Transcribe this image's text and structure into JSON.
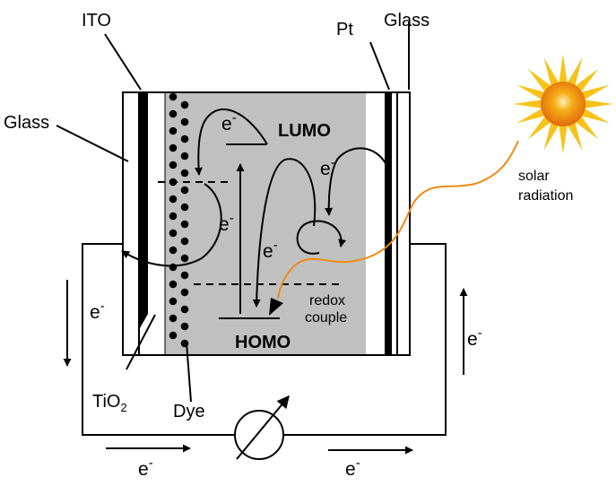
{
  "labels": {
    "ito": "ITO",
    "glass_left": "Glass",
    "glass_right": "Glass",
    "pt": "Pt",
    "tio2_base": "TiO",
    "tio2_sub": "2",
    "dye": "Dye",
    "lumo": "LUMO",
    "homo": "HOMO",
    "redox_line1": "redox",
    "redox_line2": "couple",
    "solar_line1": "solar",
    "solar_line2": "radiation"
  },
  "electron": {
    "base": "e",
    "sup": "-"
  },
  "colors": {
    "electrolyte": "#c0c0c0",
    "radiation_path": "#f08a10",
    "sun_outer": "#f7c21a",
    "sun_inner": "#f08a10",
    "line": "#000000"
  },
  "icons": [
    "sun-icon",
    "variable-resistor-icon"
  ]
}
